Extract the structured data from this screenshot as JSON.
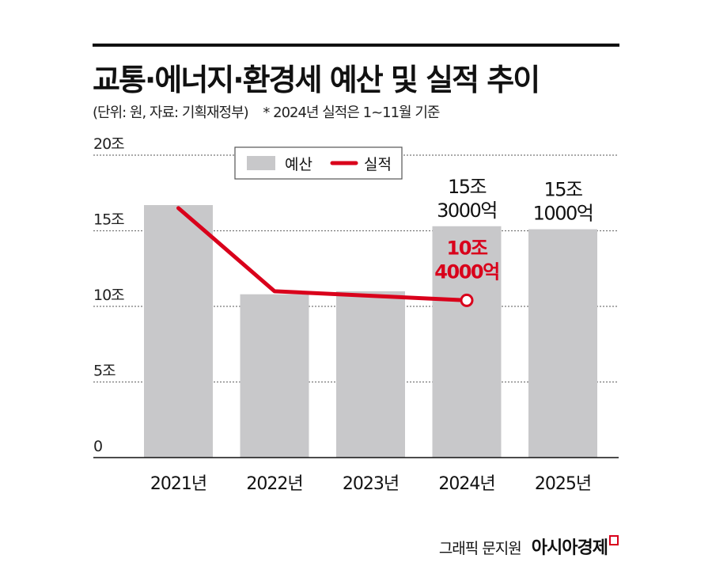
{
  "header": {
    "title": "교통·에너지·환경세 예산 및 실적 추이",
    "unit_note": "(단위: 원, 자료: 기획재정부)",
    "footnote": "* 2024년 실적은 1~11월 기준"
  },
  "footer": {
    "credit": "그래픽 문지원",
    "logo": "아시아경제"
  },
  "colors": {
    "budget_bar": "#c8c8ca",
    "actual_line": "#d9001b",
    "grid": "#777777"
  },
  "chart_data": {
    "type": "bar",
    "categories": [
      "2021년",
      "2022년",
      "2023년",
      "2024년",
      "2025년"
    ],
    "ylim": [
      0,
      20
    ],
    "yticks": [
      0,
      5,
      10,
      15,
      20
    ],
    "ytick_labels": [
      "0",
      "5조",
      "10조",
      "15조",
      "20조"
    ],
    "grid": "horizontal dotted",
    "legend_placement": "top",
    "series": [
      {
        "name": "예산",
        "type": "bar",
        "values": [
          16.7,
          10.8,
          11.0,
          15.3,
          15.1
        ]
      },
      {
        "name": "실적",
        "type": "line",
        "values": [
          16.5,
          11.0,
          10.7,
          10.4,
          null
        ]
      }
    ],
    "annotations": [
      {
        "category": "2024년",
        "series": "예산",
        "lines": [
          "15조",
          "3000억"
        ]
      },
      {
        "category": "2025년",
        "series": "예산",
        "lines": [
          "15조",
          "1000억"
        ]
      },
      {
        "category": "2024년",
        "series": "실적",
        "lines": [
          "10조",
          "4000억"
        ]
      }
    ]
  }
}
